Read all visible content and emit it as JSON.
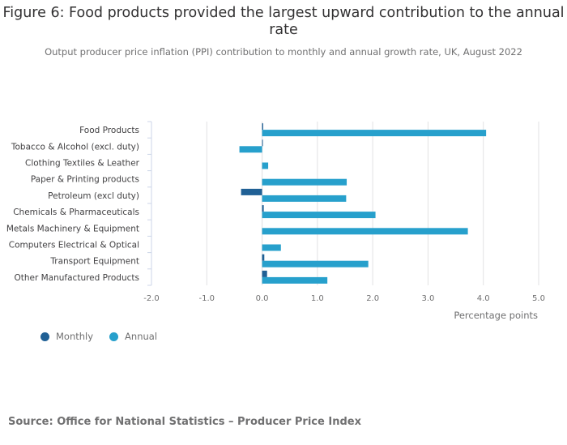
{
  "chart_data": {
    "type": "bar",
    "orientation": "horizontal",
    "title": "Figure 6: Food products provided the largest upward contribution to the annual rate",
    "subtitle": "Output producer price inflation (PPI) contribution to monthly and annual growth rate, UK, August 2022",
    "categories": [
      "Food Products",
      "Tobacco & Alcohol (excl. duty)",
      "Clothing Textiles & Leather",
      "Paper & Printing products",
      "Petroleum (excl duty)",
      "Chemicals & Pharmaceuticals",
      "Metals Machinery & Equipment",
      "Computers Electrical & Optical",
      "Transport Equipment",
      "Other Manufactured Products"
    ],
    "series": [
      {
        "name": "Monthly",
        "color": "#206095",
        "values": [
          0.02,
          0.01,
          0.0,
          0.0,
          -0.38,
          0.03,
          0.0,
          0.0,
          0.04,
          0.09
        ]
      },
      {
        "name": "Annual",
        "color": "#27a0cc",
        "values": [
          4.05,
          -0.41,
          0.11,
          1.53,
          1.52,
          2.05,
          3.72,
          0.34,
          1.92,
          1.18
        ]
      }
    ],
    "xlabel": "Percentage points",
    "ylabel": "",
    "xlim": [
      -2.0,
      5.0
    ],
    "xticks": [
      "-2.0",
      "-1.0",
      "0.0",
      "1.0",
      "2.0",
      "3.0",
      "4.0",
      "5.0"
    ],
    "grid": true,
    "legend": "bottom-left"
  },
  "source": "Source: Office for National Statistics – Producer Price Index"
}
